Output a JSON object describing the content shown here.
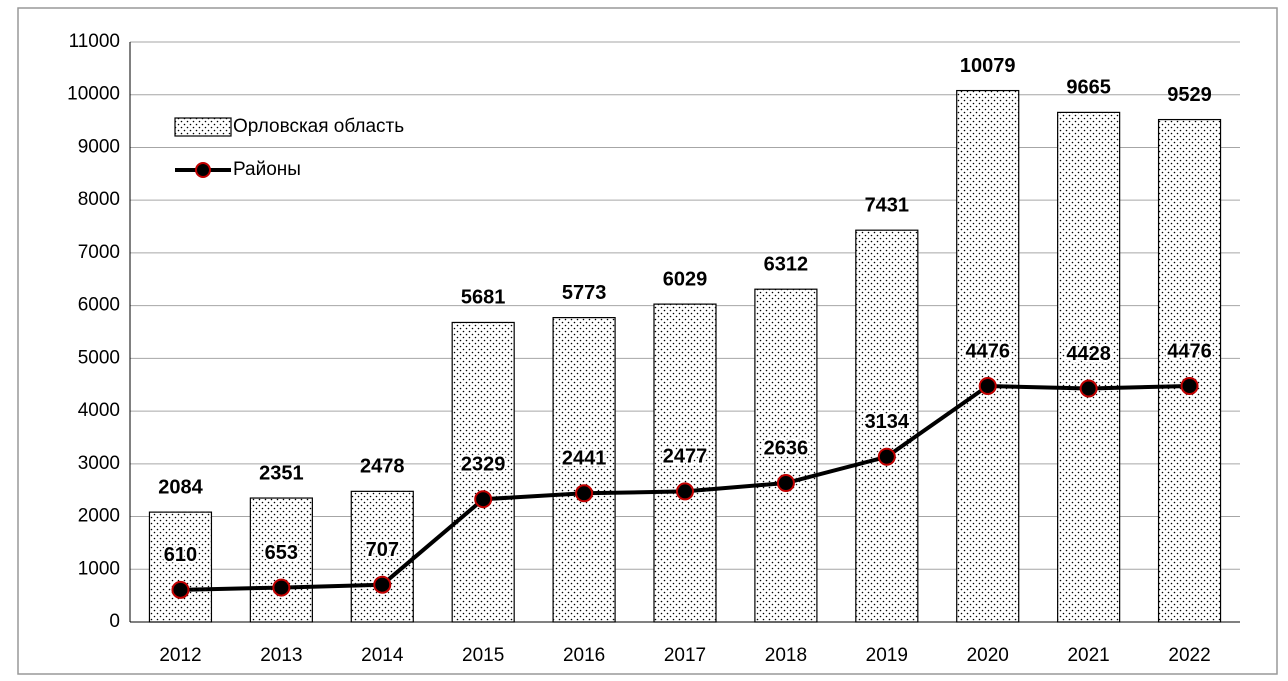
{
  "chart_data": {
    "type": "bar",
    "categories": [
      "2012",
      "2013",
      "2014",
      "2015",
      "2016",
      "2017",
      "2018",
      "2019",
      "2020",
      "2021",
      "2022"
    ],
    "series": [
      {
        "name": "Орловская область",
        "type": "bar",
        "color": "#000000",
        "values": [
          2084,
          2351,
          2478,
          5681,
          5773,
          6029,
          6312,
          7431,
          10079,
          9665,
          9529
        ]
      },
      {
        "name": "Районы",
        "type": "line",
        "color": "#000000",
        "marker_edge_color": "#c00000",
        "values": [
          610,
          653,
          707,
          2329,
          2441,
          2477,
          2636,
          3134,
          4476,
          4428,
          4476
        ]
      }
    ],
    "ylim": [
      0,
      11000
    ],
    "yticks": [
      0,
      1000,
      2000,
      3000,
      4000,
      5000,
      6000,
      7000,
      8000,
      9000,
      10000,
      11000
    ],
    "grid": true,
    "legend": "upper left"
  }
}
